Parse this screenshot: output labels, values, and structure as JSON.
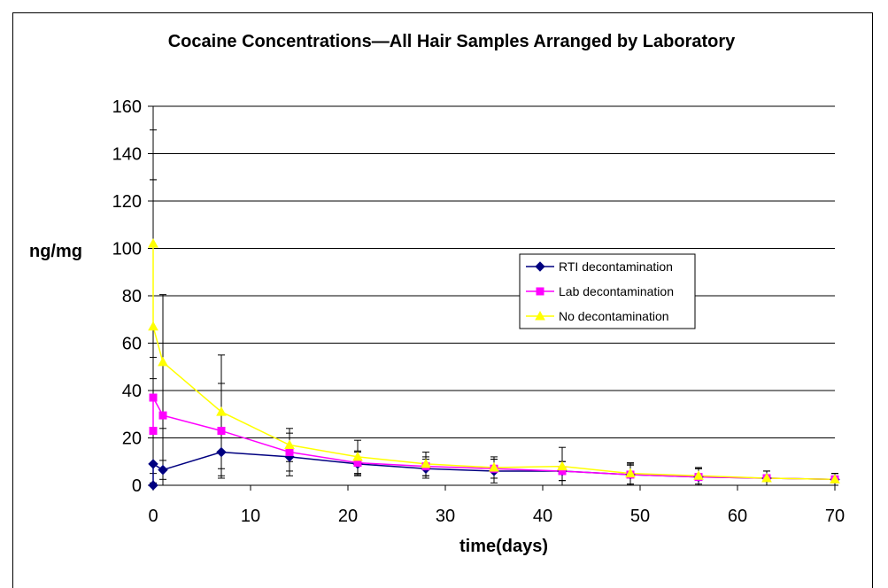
{
  "chart_data": {
    "type": "line",
    "title": "Cocaine Concentrations—All Hair Samples Arranged by Laboratory",
    "xlabel": "time(days)",
    "ylabel": "ng/mg",
    "xlim": [
      0,
      70
    ],
    "ylim": [
      0,
      160
    ],
    "x_ticks": [
      "0",
      "10",
      "20",
      "30",
      "40",
      "50",
      "60",
      "70"
    ],
    "y_ticks": [
      "0",
      "20",
      "40",
      "60",
      "80",
      "100",
      "120",
      "140",
      "160"
    ],
    "grid": "horizontal",
    "legend_position": "right",
    "series": [
      {
        "name": "RTI decontamination",
        "color": "#000080",
        "marker": "diamond",
        "x": [
          0,
          0,
          1,
          7,
          14,
          21,
          28,
          35,
          42,
          49,
          56,
          63,
          70
        ],
        "y": [
          0,
          9,
          6.5,
          14,
          12,
          9,
          7,
          6,
          6,
          4.5,
          3.5,
          3,
          2.5
        ],
        "err": [
          0,
          0,
          4,
          10,
          8,
          5,
          4,
          5,
          4,
          4.5,
          3.5,
          3,
          2.5
        ]
      },
      {
        "name": "Lab decontamination",
        "color": "#ff00ff",
        "marker": "square",
        "x": [
          0,
          0,
          1,
          7,
          14,
          21,
          28,
          35,
          42,
          49,
          56,
          63,
          70
        ],
        "y": [
          23,
          37,
          29.5,
          23,
          14,
          9.5,
          8,
          7,
          6,
          4.5,
          3.5,
          3,
          2.5
        ],
        "err": [
          22,
          92,
          51,
          20,
          8,
          5,
          4,
          4,
          4,
          4,
          3.5,
          3,
          2.5
        ]
      },
      {
        "name": "No decontamination",
        "color": "#ffff00",
        "marker": "triangle",
        "x": [
          0,
          0,
          1,
          7,
          14,
          21,
          28,
          35,
          42,
          49,
          56,
          63,
          70
        ],
        "y": [
          102,
          67,
          52,
          31,
          17,
          12,
          9,
          7.5,
          8,
          5,
          4,
          3,
          2.5
        ],
        "err": [
          48,
          62,
          28,
          24,
          7,
          7,
          5,
          4.5,
          8,
          4.5,
          3.5,
          3,
          2.5
        ]
      }
    ]
  }
}
